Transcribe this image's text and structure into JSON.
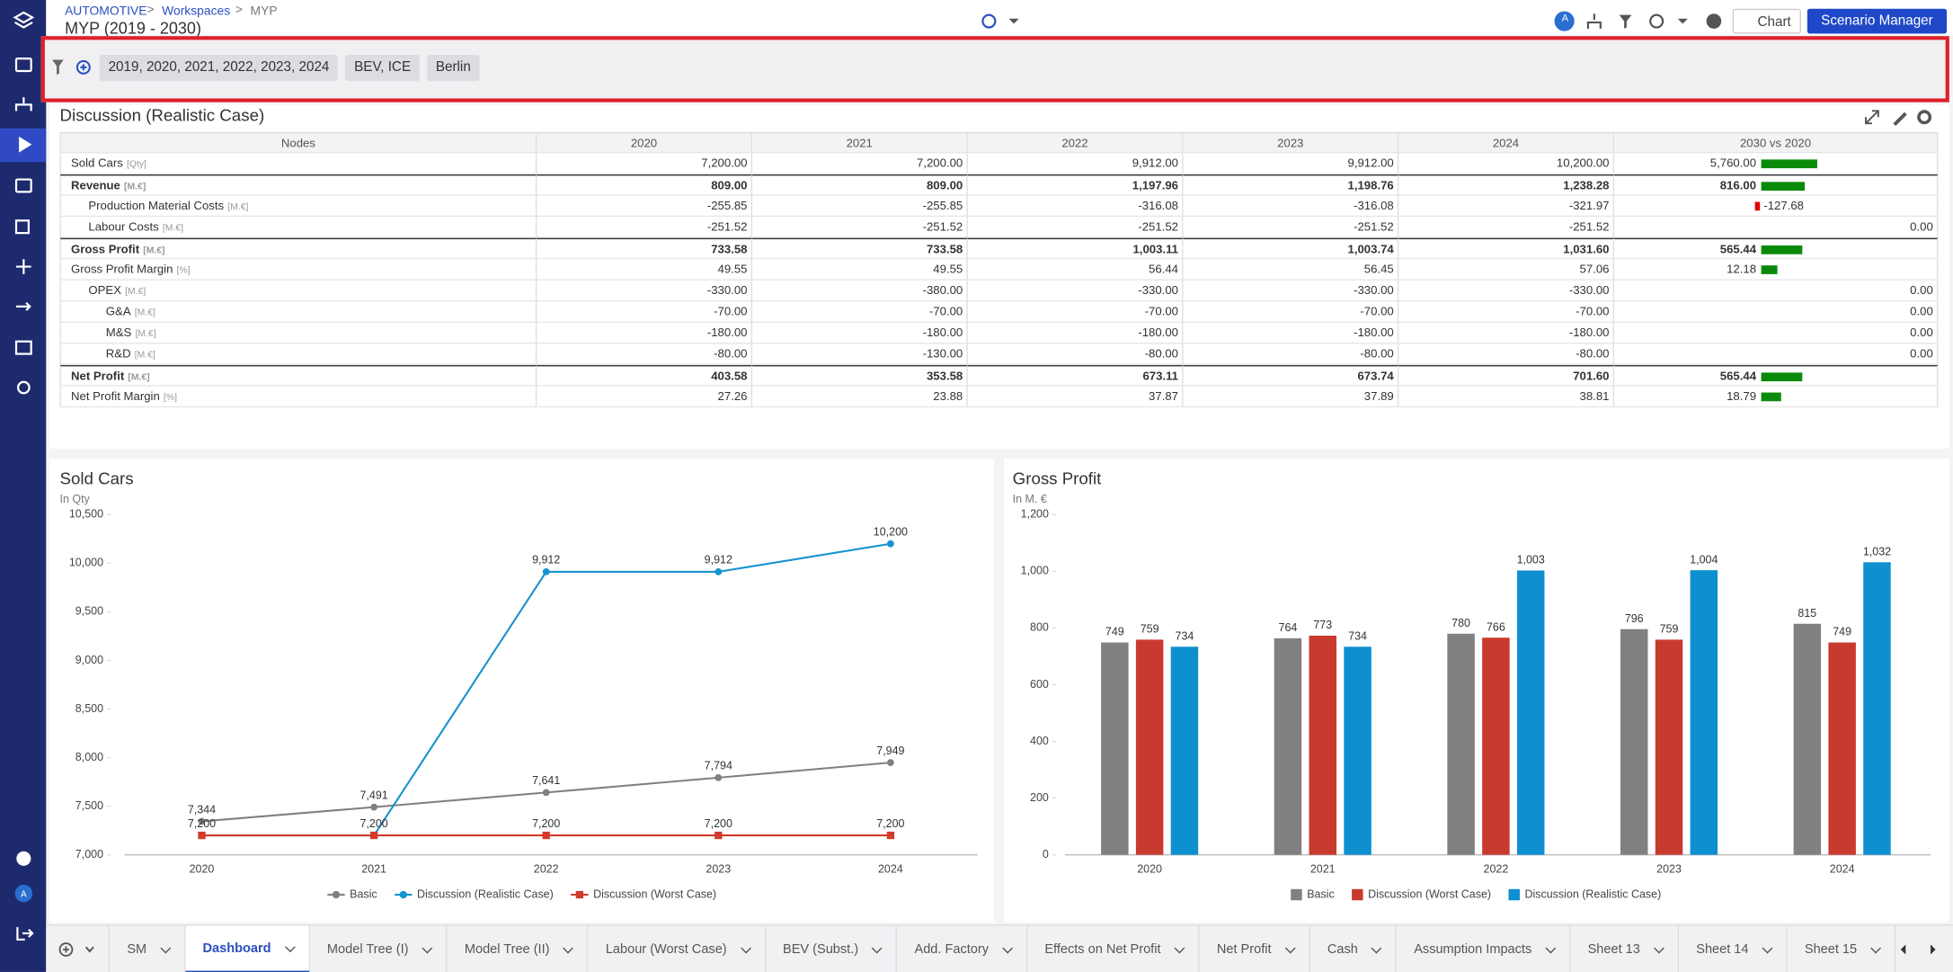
{
  "header": {
    "breadcrumb": [
      "AUTOMOTIVE",
      "Workspaces",
      "MYP"
    ],
    "title": "MYP (2019 - 2030)",
    "avatar": "A",
    "buttons": [
      "Chart",
      "Scenario Manager"
    ]
  },
  "filters": [
    "2019, 2020, 2021, 2022, 2023, 2024",
    "BEV, ICE",
    "Berlin"
  ],
  "table": {
    "title": "Discussion (Realistic Case)",
    "columns": [
      "Nodes",
      "2020",
      "2021",
      "2022",
      "2023",
      "2024",
      "2030 vs 2020"
    ],
    "rows": [
      {
        "label": "Sold Cars",
        "unit": "[Qty]",
        "level": 0,
        "bold": false,
        "cells": [
          "7,200.00",
          "7,200.00",
          "9,912.00",
          "9,912.00",
          "10,200.00",
          "5,760.00"
        ]
      },
      {
        "label": "Revenue",
        "unit": "[M.€]",
        "level": 0,
        "bold": true,
        "cells": [
          "809.00",
          "809.00",
          "1,197.96",
          "1,198.76",
          "1,238.28",
          "816.00"
        ]
      },
      {
        "label": "Production Material Costs",
        "unit": "[M.€]",
        "level": 1,
        "bold": false,
        "cells": [
          "-255.85",
          "-255.85",
          "-316.08",
          "-316.08",
          "-321.97",
          "-127.68"
        ]
      },
      {
        "label": "Labour Costs",
        "unit": "[M.€]",
        "level": 1,
        "bold": false,
        "cells": [
          "-251.52",
          "-251.52",
          "-251.52",
          "-251.52",
          "-251.52",
          "0.00"
        ]
      },
      {
        "label": "Gross Profit",
        "unit": "[M.€]",
        "level": 0,
        "bold": true,
        "cells": [
          "733.58",
          "733.58",
          "1,003.11",
          "1,003.74",
          "1,031.60",
          "565.44"
        ]
      },
      {
        "label": "Gross Profit Margin",
        "unit": "[%]",
        "level": 0,
        "bold": false,
        "cells": [
          "49.55",
          "49.55",
          "56.44",
          "56.45",
          "57.06",
          "12.18"
        ]
      },
      {
        "label": "OPEX",
        "unit": "[M.€]",
        "level": 1,
        "bold": false,
        "cells": [
          "-330.00",
          "-380.00",
          "-330.00",
          "-330.00",
          "-330.00",
          "0.00"
        ]
      },
      {
        "label": "G&A",
        "unit": "[M.€]",
        "level": 2,
        "bold": false,
        "cells": [
          "-70.00",
          "-70.00",
          "-70.00",
          "-70.00",
          "-70.00",
          "0.00"
        ]
      },
      {
        "label": "M&S",
        "unit": "[M.€]",
        "level": 2,
        "bold": false,
        "cells": [
          "-180.00",
          "-180.00",
          "-180.00",
          "-180.00",
          "-180.00",
          "0.00"
        ]
      },
      {
        "label": "R&D",
        "unit": "[M.€]",
        "level": 2,
        "bold": false,
        "cells": [
          "-80.00",
          "-130.00",
          "-80.00",
          "-80.00",
          "-80.00",
          "0.00"
        ]
      },
      {
        "label": "Net Profit",
        "unit": "[M.€]",
        "level": 0,
        "bold": true,
        "cells": [
          "403.58",
          "353.58",
          "673.11",
          "673.74",
          "701.60",
          "565.44"
        ]
      },
      {
        "label": "Net Profit Margin",
        "unit": "[%]",
        "level": 0,
        "bold": false,
        "cells": [
          "27.26",
          "23.88",
          "37.87",
          "37.89",
          "38.81",
          "18.79"
        ]
      }
    ]
  },
  "chart_data": [
    {
      "type": "line",
      "title": "Sold Cars",
      "subtitle": "In Qty",
      "categories": [
        "2020",
        "2021",
        "2022",
        "2023",
        "2024"
      ],
      "ylim": [
        7000,
        10500
      ],
      "yticks": [
        {
          "value": 7000,
          "label": "7,000"
        },
        {
          "value": 7500,
          "label": "7,500"
        },
        {
          "value": 8000,
          "label": "8,000"
        },
        {
          "value": 8500,
          "label": "8,500"
        },
        {
          "value": 9000,
          "label": "9,000"
        },
        {
          "value": 9500,
          "label": "9,500"
        },
        {
          "value": 10000,
          "label": "10,000"
        },
        {
          "value": 10500,
          "label": "10,500"
        }
      ],
      "grid": false,
      "series": [
        {
          "name": "Basic",
          "color": "#808080",
          "marker": "circle",
          "values": [
            7344,
            7491,
            7641,
            7794,
            7949
          ],
          "value_labels": [
            "7,344",
            "7,491",
            "7,641",
            "7,794",
            "7,949"
          ]
        },
        {
          "name": "Discussion (Realistic Case)",
          "color": "#1593d0",
          "marker": "circle",
          "values": [
            7200,
            7200,
            9912,
            9912,
            10200
          ],
          "value_labels": [
            null,
            null,
            "9,912",
            "9,912",
            "10,200"
          ]
        },
        {
          "name": "Discussion (Worst Case)",
          "color": "#d13a2c",
          "marker": "square",
          "values": [
            7200,
            7200,
            7200,
            7200,
            7200
          ],
          "value_labels": [
            "7,200",
            "7,200",
            "7,200",
            "7,200",
            "7,200"
          ]
        }
      ]
    },
    {
      "type": "bar",
      "title": "Gross Profit",
      "subtitle": "In M. €",
      "categories": [
        "2020",
        "2021",
        "2022",
        "2023",
        "2024"
      ],
      "ylim": [
        0,
        1200
      ],
      "yticks": [
        0,
        200,
        400,
        600,
        800,
        {
          "value": 1000,
          "label": "1,000"
        },
        {
          "value": 1200,
          "label": "1,200"
        }
      ],
      "grid": false,
      "series": [
        {
          "name": "Basic",
          "color": "#808080",
          "values": [
            749,
            764,
            780,
            796,
            815
          ]
        },
        {
          "name": "Discussion (Worst Case)",
          "color": "#c93a2e",
          "values": [
            759,
            773,
            766,
            759,
            749
          ]
        },
        {
          "name": "Discussion (Realistic Case)",
          "color": "#0e8fd0",
          "values": [
            734,
            734,
            1003,
            1004,
            1032
          ],
          "value_labels": [
            "734",
            "734",
            "1,003",
            "1,004",
            "1,032"
          ]
        }
      ]
    }
  ],
  "tabs": [
    "SM",
    "Dashboard",
    "Model Tree (I)",
    "Model Tree (II)",
    "Labour (Worst Case)",
    "BEV (Subst.)",
    "Add. Factory",
    "Effects on Net Profit",
    "Net Profit",
    "Cash",
    "Assumption Impacts",
    "Sheet 13",
    "Sheet 14",
    "Sheet 15"
  ],
  "active_tab": 1
}
